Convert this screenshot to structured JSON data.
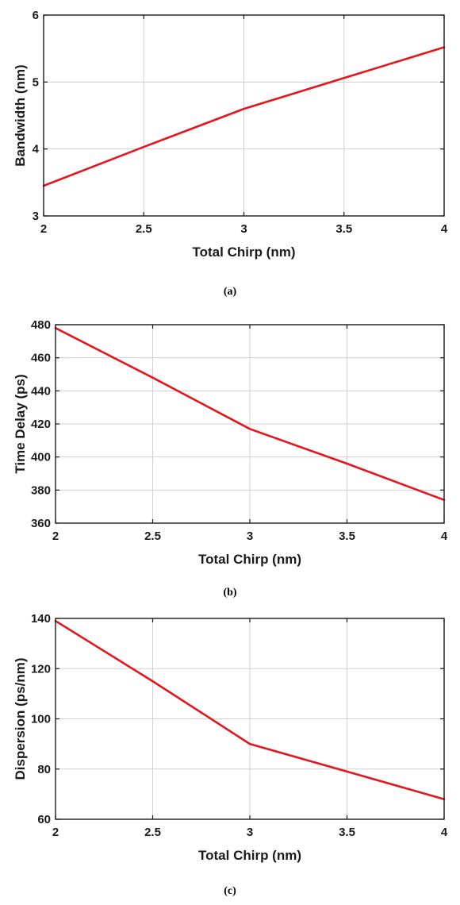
{
  "chart_data": [
    {
      "type": "line",
      "caption": "(a)",
      "xlabel": "Total Chirp (nm)",
      "ylabel": "Bandwidth (nm)",
      "xlim": [
        2,
        4
      ],
      "ylim": [
        3,
        6
      ],
      "xticks": [
        2,
        2.5,
        3,
        3.5,
        4
      ],
      "xtick_labels": [
        "2",
        "2.5",
        "3",
        "3.5",
        "4"
      ],
      "yticks": [
        3,
        4,
        5,
        6
      ],
      "ytick_labels": [
        "3",
        "4",
        "5",
        "6"
      ],
      "grid": true,
      "color": "#e8141c",
      "series": [
        {
          "x": [
            2,
            2.5,
            3,
            3.5,
            4
          ],
          "y": [
            3.45,
            4.03,
            4.6,
            5.06,
            5.52
          ]
        }
      ]
    },
    {
      "type": "line",
      "caption": "(b)",
      "xlabel": "Total Chirp (nm)",
      "ylabel": "Time Delay (ps)",
      "xlim": [
        2,
        4
      ],
      "ylim": [
        360,
        480
      ],
      "xticks": [
        2,
        2.5,
        3,
        3.5,
        4
      ],
      "xtick_labels": [
        "2",
        "2.5",
        "3",
        "3.5",
        "4"
      ],
      "yticks": [
        360,
        380,
        400,
        420,
        440,
        460,
        480
      ],
      "ytick_labels": [
        "360",
        "380",
        "400",
        "420",
        "440",
        "460",
        "480"
      ],
      "grid": true,
      "color": "#e8141c",
      "series": [
        {
          "x": [
            2,
            2.5,
            3,
            3.5,
            4
          ],
          "y": [
            478,
            448,
            417,
            396,
            374
          ]
        }
      ]
    },
    {
      "type": "line",
      "caption": "(c)",
      "xlabel": "Total Chirp (nm)",
      "ylabel": "Dispersion (ps/nm)",
      "xlim": [
        2,
        4
      ],
      "ylim": [
        60,
        140
      ],
      "xticks": [
        2,
        2.5,
        3,
        3.5,
        4
      ],
      "xtick_labels": [
        "2",
        "2.5",
        "3",
        "3.5",
        "4"
      ],
      "yticks": [
        60,
        80,
        100,
        120,
        140
      ],
      "ytick_labels": [
        "60",
        "80",
        "100",
        "120",
        "140"
      ],
      "grid": true,
      "color": "#e8141c",
      "series": [
        {
          "x": [
            2,
            2.5,
            3,
            3.5,
            4
          ],
          "y": [
            139,
            115,
            90,
            79,
            68
          ]
        }
      ]
    }
  ]
}
